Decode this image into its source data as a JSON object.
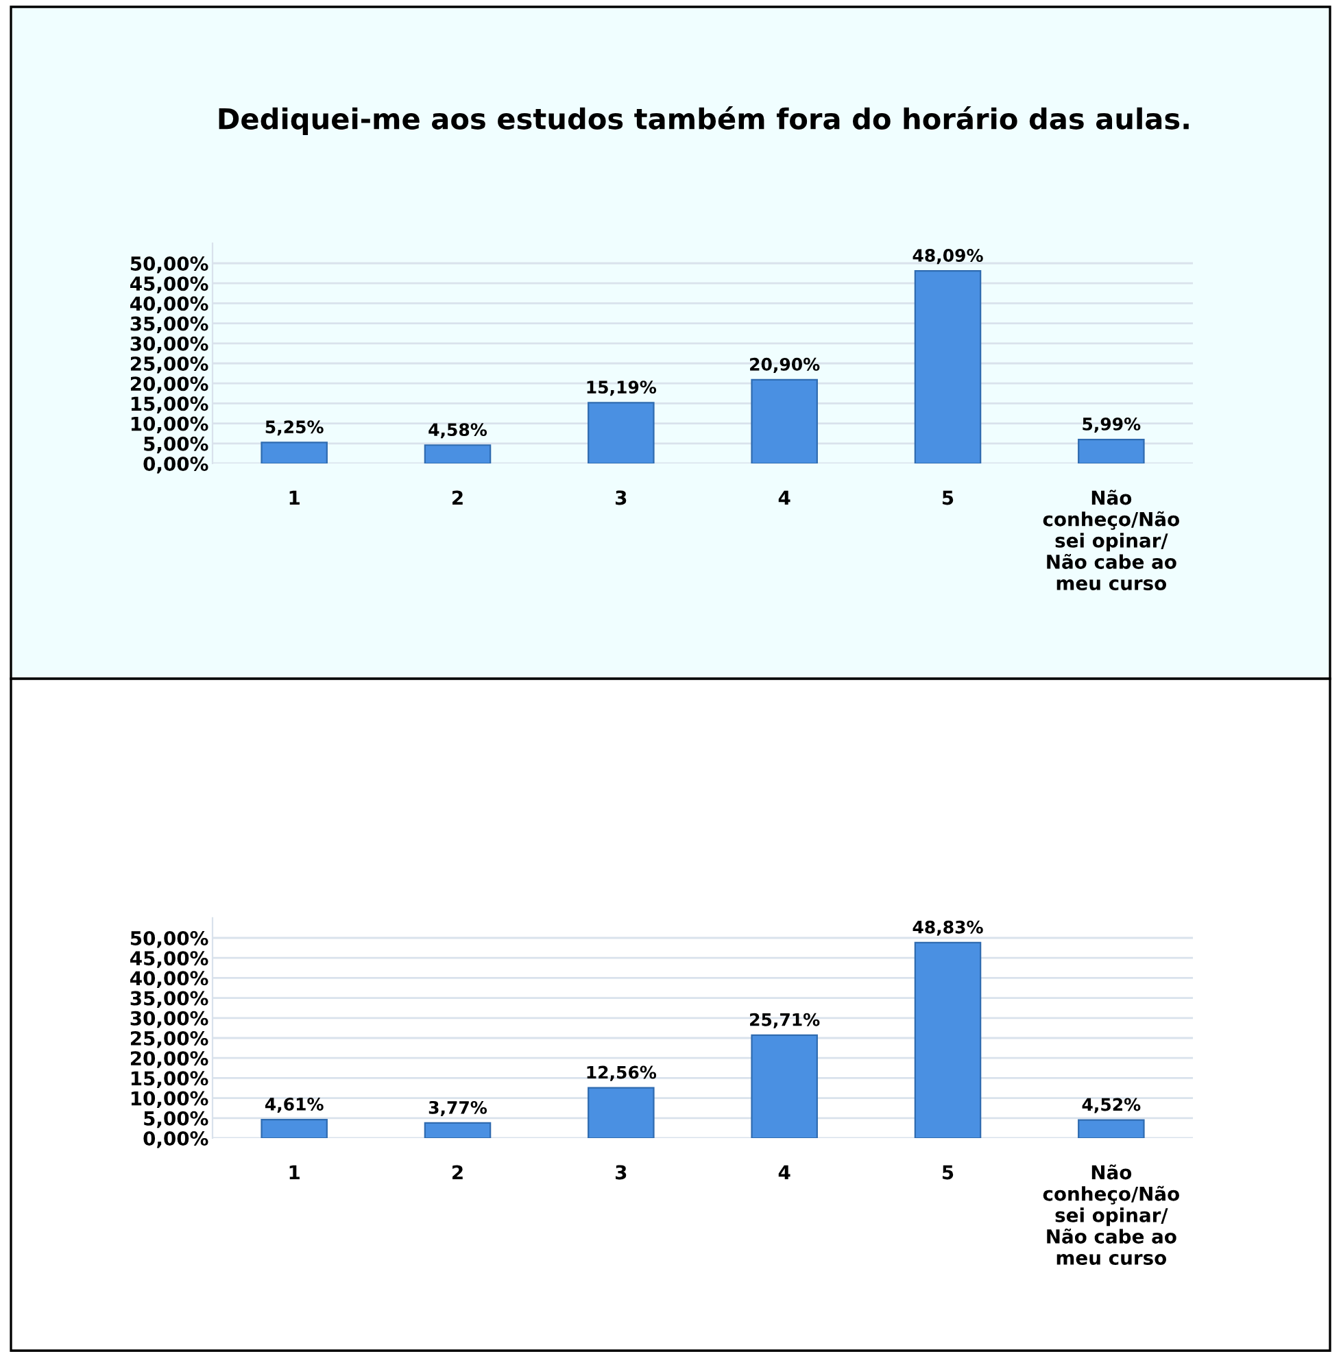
{
  "chart_data": [
    {
      "type": "bar",
      "title": "Dediquei-me aos estudos também fora do horário das aulas.",
      "categories": [
        "1",
        "2",
        "3",
        "4",
        "5",
        "Não\nconheço/Não\nsei opinar/\nNão cabe ao\nmeu curso"
      ],
      "values": [
        5.25,
        4.58,
        15.19,
        20.9,
        48.09,
        5.99
      ],
      "value_labels": [
        "5,25%",
        "4,58%",
        "15,19%",
        "20,90%",
        "48,09%",
        "5,99%"
      ],
      "color": "#4a90e2",
      "ylim": [
        0,
        55
      ],
      "yticks": [
        {
          "value": 0,
          "label": "0,00%"
        },
        {
          "value": 5,
          "label": "5,00%"
        },
        {
          "value": 10,
          "label": "10,00%"
        },
        {
          "value": 15,
          "label": "15,00%"
        },
        {
          "value": 20,
          "label": "20,00%"
        },
        {
          "value": 25,
          "label": "25,00%"
        },
        {
          "value": 30,
          "label": "30,00%"
        },
        {
          "value": 35,
          "label": "35,00%"
        },
        {
          "value": 40,
          "label": "40,00%"
        },
        {
          "value": 45,
          "label": "45,00%"
        },
        {
          "value": 50,
          "label": "50,00%"
        }
      ],
      "grid": "y",
      "legend": false
    },
    {
      "type": "bar",
      "categories": [
        "1",
        "2",
        "3",
        "4",
        "5",
        "Não\nconheço/Não\nsei opinar/\nNão cabe ao\nmeu curso"
      ],
      "values": [
        4.61,
        3.77,
        12.56,
        25.71,
        48.83,
        4.52
      ],
      "value_labels": [
        "4,61%",
        "3,77%",
        "12,56%",
        "25,71%",
        "48,83%",
        "4,52%"
      ],
      "color": "#4a90e2",
      "ylim": [
        0,
        55
      ],
      "yticks": [
        {
          "value": 0,
          "label": "0,00%"
        },
        {
          "value": 5,
          "label": "5,00%"
        },
        {
          "value": 10,
          "label": "10,00%"
        },
        {
          "value": 15,
          "label": "15,00%"
        },
        {
          "value": 20,
          "label": "20,00%"
        },
        {
          "value": 25,
          "label": "25,00%"
        },
        {
          "value": 30,
          "label": "30,00%"
        },
        {
          "value": 35,
          "label": "35,00%"
        },
        {
          "value": 40,
          "label": "40,00%"
        },
        {
          "value": 45,
          "label": "45,00%"
        },
        {
          "value": 50,
          "label": "50,00%"
        }
      ],
      "grid": "y",
      "legend": false
    }
  ]
}
